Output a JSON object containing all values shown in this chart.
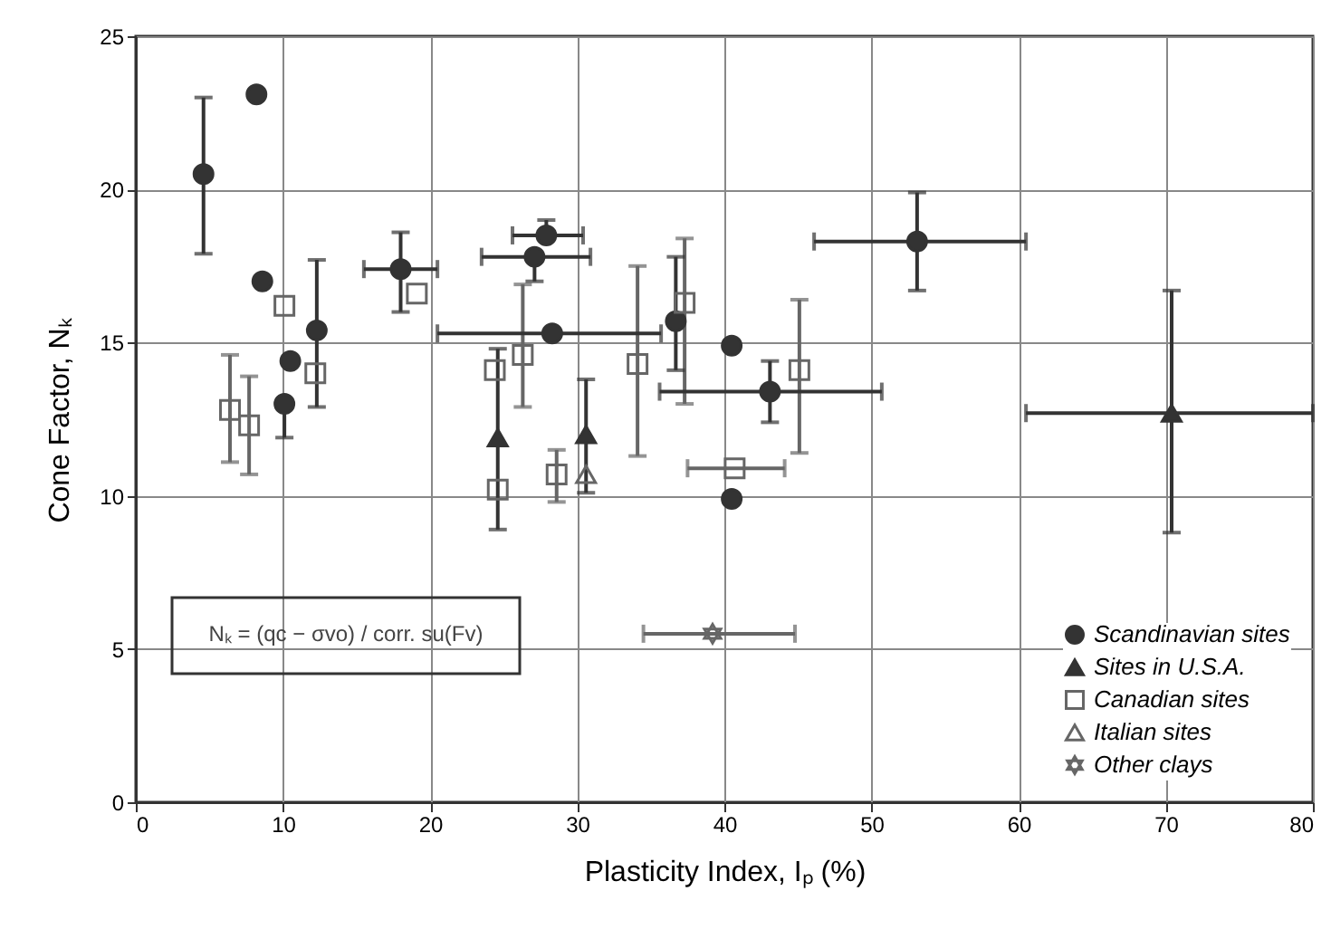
{
  "chart_data": {
    "type": "scatter",
    "xlabel": "Plasticity Index, Iₚ (%)",
    "ylabel": "Cone Factor, Nₖ",
    "xlim": [
      0,
      80
    ],
    "xticks": [
      0,
      10,
      20,
      30,
      40,
      50,
      60,
      70,
      80
    ],
    "ylim": [
      0,
      25
    ],
    "yticks": [
      0,
      5,
      10,
      15,
      20,
      25
    ],
    "grid": true,
    "legend": "bottom right",
    "annotations": [
      "Nₖ = (qc − σvo) / corr. su(Fv)"
    ],
    "series": [
      {
        "name": "Scandinavian sites",
        "color": "#333333",
        "marker": "circle",
        "x": [
          4.6,
          8.2,
          8.6,
          12.3,
          10.5,
          10.1,
          18.0,
          27.1,
          27.9,
          28.3,
          36.7,
          40.5,
          43.1,
          40.5,
          53.1
        ],
        "values": [
          20.5,
          23.1,
          17.0,
          15.4,
          14.4,
          13.0,
          17.4,
          17.8,
          18.5,
          15.3,
          15.7,
          14.9,
          13.4,
          9.9,
          18.3
        ],
        "errors": [
          [
            17.9,
            23.0
          ],
          null,
          null,
          [
            12.9,
            17.7
          ],
          null,
          [
            11.9,
            13.0
          ],
          [
            16.0,
            18.6
          ],
          [
            17.0,
            17.8
          ],
          [
            18.5,
            19.0
          ],
          null,
          [
            14.1,
            17.8
          ],
          null,
          [
            12.4,
            14.4
          ],
          null,
          [
            16.7,
            19.9
          ]
        ],
        "xerrors": [
          null,
          null,
          null,
          null,
          null,
          null,
          [
            15.5,
            20.5
          ],
          [
            23.5,
            30.9
          ],
          [
            25.6,
            30.4
          ],
          [
            20.5,
            35.7
          ],
          null,
          null,
          [
            35.6,
            50.7
          ],
          null,
          [
            46.1,
            60.5
          ]
        ]
      },
      {
        "name": "Sites in U.S.A.",
        "color": "#333333",
        "marker": "triangle",
        "x": [
          24.6,
          30.6,
          70.4
        ],
        "values": [
          11.9,
          12.0,
          12.7
        ],
        "errors": [
          [
            8.9,
            14.8
          ],
          [
            10.1,
            13.8
          ],
          [
            8.8,
            16.7
          ]
        ],
        "xerrors": [
          null,
          null,
          [
            60.5,
            80
          ]
        ]
      },
      {
        "name": "Canadian sites",
        "color": "#666666",
        "marker": "square",
        "x": [
          10.1,
          19.1,
          12.2,
          6.4,
          7.7,
          24.4,
          26.3,
          24.6,
          28.6,
          37.3,
          34.1,
          45.1,
          40.7
        ],
        "values": [
          16.2,
          16.6,
          14.0,
          12.8,
          12.3,
          14.1,
          14.6,
          10.2,
          10.7,
          16.3,
          14.3,
          14.1,
          10.9
        ],
        "errors": [
          null,
          null,
          null,
          [
            11.1,
            14.6
          ],
          [
            10.7,
            13.9
          ],
          null,
          [
            12.9,
            16.9
          ],
          null,
          [
            9.8,
            11.5
          ],
          [
            13.0,
            18.4
          ],
          [
            11.3,
            17.5
          ],
          [
            11.4,
            16.4
          ],
          null
        ],
        "xerrors": [
          null,
          null,
          null,
          null,
          null,
          null,
          null,
          null,
          null,
          null,
          null,
          null,
          [
            37.5,
            44.1
          ]
        ]
      },
      {
        "name": "Italian sites",
        "color": "#666666",
        "marker": "triangle",
        "x": [
          30.6
        ],
        "values": [
          10.7
        ]
      },
      {
        "name": "Other clays",
        "color": "#666666",
        "marker": "star",
        "x": [
          39.2
        ],
        "values": [
          5.5
        ],
        "xerrors": [
          [
            34.5,
            44.8
          ]
        ]
      }
    ]
  }
}
